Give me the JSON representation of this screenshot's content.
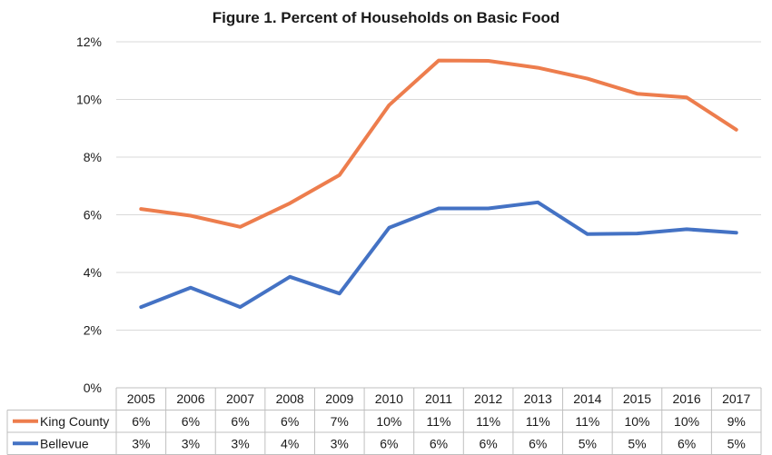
{
  "chart_data": {
    "type": "line",
    "title": "Figure 1. Percent of Households on Basic Food",
    "x": [
      "2005",
      "2006",
      "2007",
      "2008",
      "2009",
      "2010",
      "2011",
      "2012",
      "2013",
      "2014",
      "2015",
      "2016",
      "2017"
    ],
    "ylim": [
      0,
      12
    ],
    "yticks": [
      "0%",
      "2%",
      "4%",
      "6%",
      "8%",
      "10%",
      "12%"
    ],
    "ytick_values": [
      0,
      2,
      4,
      6,
      8,
      10,
      12
    ],
    "grid": true,
    "legend": "data-table-below",
    "series": [
      {
        "name": "King County",
        "color": "#ED7D4D",
        "values": [
          6.2,
          5.97,
          5.58,
          6.4,
          7.38,
          9.8,
          11.35,
          11.34,
          11.1,
          10.72,
          10.2,
          10.07,
          8.95
        ],
        "table_labels": [
          "6%",
          "6%",
          "6%",
          "6%",
          "7%",
          "10%",
          "11%",
          "11%",
          "11%",
          "11%",
          "10%",
          "10%",
          "9%"
        ]
      },
      {
        "name": "Bellevue",
        "color": "#4472C4",
        "values": [
          2.8,
          3.47,
          2.8,
          3.85,
          3.27,
          5.55,
          6.22,
          6.22,
          6.43,
          5.33,
          5.35,
          5.5,
          5.38
        ],
        "table_labels": [
          "3%",
          "3%",
          "3%",
          "4%",
          "3%",
          "6%",
          "6%",
          "6%",
          "6%",
          "5%",
          "5%",
          "6%",
          "5%"
        ]
      }
    ]
  }
}
